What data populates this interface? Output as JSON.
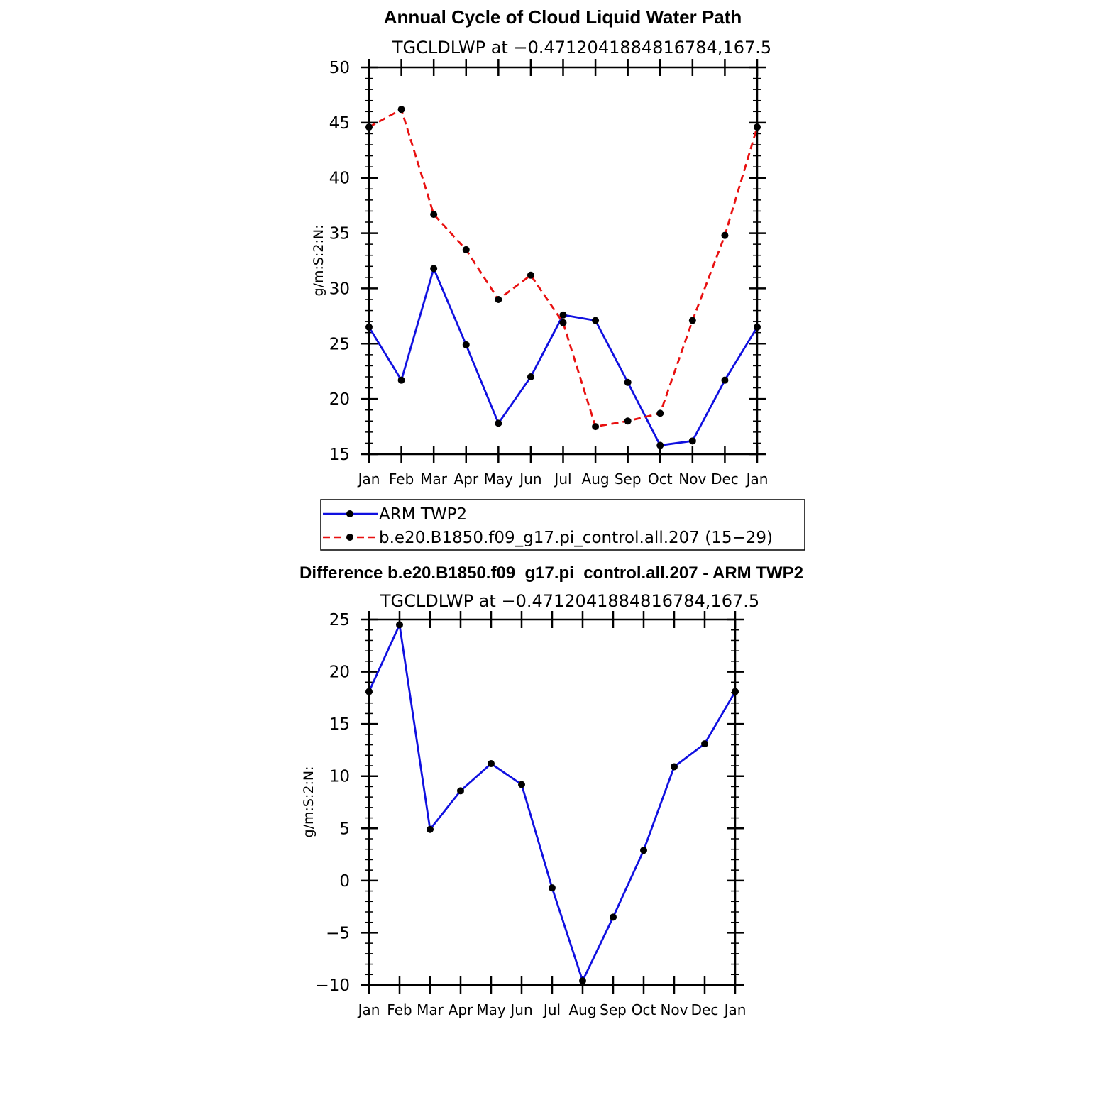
{
  "chart_data": [
    {
      "type": "line",
      "title": "Annual Cycle of Cloud Liquid Water Path",
      "subtitle": "TGCLDLWP at −0.4712041884816784,167.5",
      "xlabel": "",
      "ylabel": "g/m:S:2:N:",
      "categories": [
        "Jan",
        "Feb",
        "Mar",
        "Apr",
        "May",
        "Jun",
        "Jul",
        "Aug",
        "Sep",
        "Oct",
        "Nov",
        "Dec",
        "Jan"
      ],
      "ylim": [
        15,
        50
      ],
      "yticks": [
        15,
        20,
        25,
        30,
        35,
        40,
        45,
        50
      ],
      "ytick_labels": [
        "15",
        "20",
        "25",
        "30",
        "35",
        "40",
        "45",
        "50"
      ],
      "grid": false,
      "legend_position": "bottom",
      "series": [
        {
          "name": "ARM TWP2",
          "color": "#1010e0",
          "dash": "solid",
          "values": [
            26.5,
            21.7,
            31.8,
            24.9,
            17.8,
            22.0,
            27.6,
            27.1,
            21.5,
            15.8,
            16.2,
            21.7,
            26.5
          ]
        },
        {
          "name": "b.e20.B1850.f09_g17.pi_control.all.207 (15−29)",
          "color": "#e81010",
          "dash": "dashed",
          "values": [
            44.6,
            46.2,
            36.7,
            33.5,
            29.0,
            31.2,
            26.9,
            17.5,
            18.0,
            18.7,
            27.1,
            34.8,
            44.6
          ]
        }
      ]
    },
    {
      "type": "line",
      "title": "Difference b.e20.B1850.f09_g17.pi_control.all.207 - ARM TWP2",
      "subtitle": "TGCLDLWP at −0.4712041884816784,167.5",
      "xlabel": "",
      "ylabel": "g/m:S:2:N:",
      "categories": [
        "Jan",
        "Feb",
        "Mar",
        "Apr",
        "May",
        "Jun",
        "Jul",
        "Aug",
        "Sep",
        "Oct",
        "Nov",
        "Dec",
        "Jan"
      ],
      "ylim": [
        -10,
        25
      ],
      "yticks": [
        -10,
        -5,
        0,
        5,
        10,
        15,
        20,
        25
      ],
      "ytick_labels": [
        "−10",
        "−5",
        "0",
        "5",
        "10",
        "15",
        "20",
        "25"
      ],
      "grid": false,
      "series": [
        {
          "name": "Difference",
          "color": "#1010e0",
          "dash": "solid",
          "values": [
            18.1,
            24.5,
            4.9,
            8.6,
            11.2,
            9.2,
            -0.7,
            -9.6,
            -3.5,
            2.9,
            10.9,
            13.1,
            18.1
          ]
        }
      ]
    }
  ]
}
